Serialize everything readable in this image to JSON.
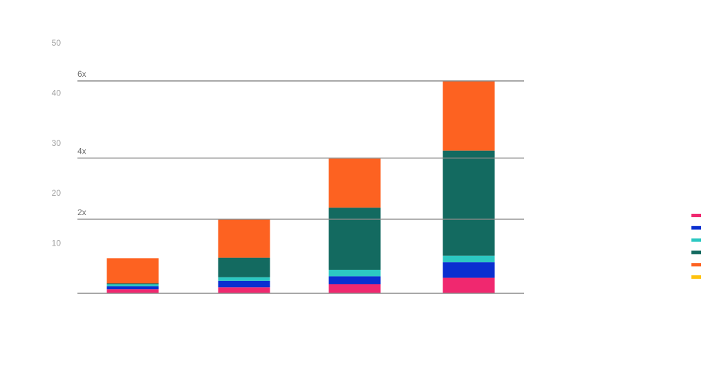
{
  "chart_data": {
    "type": "bar",
    "stacked": true,
    "categories": [
      "",
      "",
      "",
      ""
    ],
    "ylim": [
      0,
      50
    ],
    "yticks": [
      10,
      20,
      30,
      40,
      50
    ],
    "grid": false,
    "reference_lines": [
      {
        "value": 14.8,
        "label": "2x"
      },
      {
        "value": 27.0,
        "label": "4x"
      },
      {
        "value": 42.4,
        "label": "6x"
      }
    ],
    "series": [
      {
        "color": "#f0286f",
        "values": [
          0.8,
          1.2,
          1.8,
          3.1
        ]
      },
      {
        "color": "#0a2fd0",
        "values": [
          0.6,
          1.3,
          1.6,
          3.1
        ]
      },
      {
        "color": "#2cc8c2",
        "values": [
          0.4,
          0.7,
          1.3,
          1.3
        ]
      },
      {
        "color": "#136a60",
        "values": [
          0.2,
          3.9,
          12.4,
          21.0
        ]
      },
      {
        "color": "#fd6221",
        "values": [
          5.0,
          7.7,
          9.8,
          13.9
        ]
      },
      {
        "color": "#ffc20e",
        "values": [
          0.0,
          0.0,
          0.0,
          0.0
        ]
      }
    ],
    "legend_placement": "right"
  }
}
